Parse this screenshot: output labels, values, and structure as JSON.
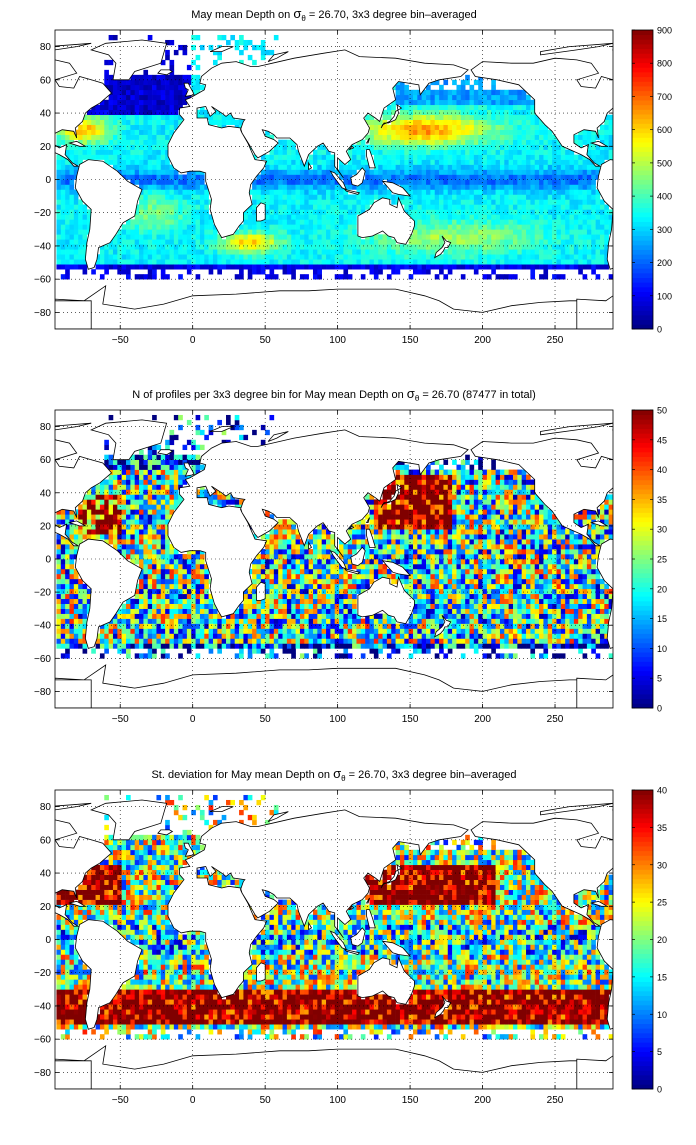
{
  "chart_data": [
    {
      "type": "heatmap",
      "title": {
        "pre": "May mean Depth on ",
        "sym": "σ",
        "sub": "θ",
        "post": " = 26.70, 3x3 degree bin–averaged"
      },
      "xlim": [
        -95,
        290
      ],
      "ylim": [
        -90,
        90
      ],
      "x_ticks": [
        -50,
        0,
        50,
        100,
        150,
        200,
        250
      ],
      "y_ticks": [
        -80,
        -60,
        -40,
        -20,
        0,
        20,
        40,
        60,
        80
      ],
      "colorbar": {
        "min": 0,
        "max": 900,
        "ticks": [
          0,
          100,
          200,
          300,
          400,
          500,
          600,
          700,
          800,
          900
        ],
        "colormap": "jet"
      },
      "grid": true,
      "field": "depth",
      "values_description_free": true
    },
    {
      "type": "heatmap",
      "title": {
        "pre": "N of profiles per 3x3 degree bin for May mean Depth on ",
        "sym": "σ",
        "sub": "θ",
        "post": " = 26.70 (87477 in total)"
      },
      "xlim": [
        -95,
        290
      ],
      "ylim": [
        -90,
        90
      ],
      "x_ticks": [
        -50,
        0,
        50,
        100,
        150,
        200,
        250
      ],
      "y_ticks": [
        -80,
        -60,
        -40,
        -20,
        0,
        20,
        40,
        60,
        80
      ],
      "colorbar": {
        "min": 0,
        "max": 50,
        "ticks": [
          0,
          5,
          10,
          15,
          20,
          25,
          30,
          35,
          40,
          45,
          50
        ],
        "colormap": "jet"
      },
      "grid": true,
      "field": "count"
    },
    {
      "type": "heatmap",
      "title": {
        "pre": "St. deviation for May mean Depth on ",
        "sym": "σ",
        "sub": "θ",
        "post": " = 26.70, 3x3 degree bin–averaged"
      },
      "xlim": [
        -95,
        290
      ],
      "ylim": [
        -90,
        90
      ],
      "x_ticks": [
        -50,
        0,
        50,
        100,
        150,
        200,
        250
      ],
      "y_ticks": [
        -80,
        -60,
        -40,
        -20,
        0,
        20,
        40,
        60,
        80
      ],
      "colorbar": {
        "min": 0,
        "max": 40,
        "ticks": [
          0,
          5,
          10,
          15,
          20,
          25,
          30,
          35,
          40
        ],
        "colormap": "jet"
      },
      "grid": true,
      "field": "std"
    }
  ],
  "colors": {
    "axis": "#000000",
    "grid": "#000000",
    "background": "#ffffff",
    "coast": "#000000"
  }
}
